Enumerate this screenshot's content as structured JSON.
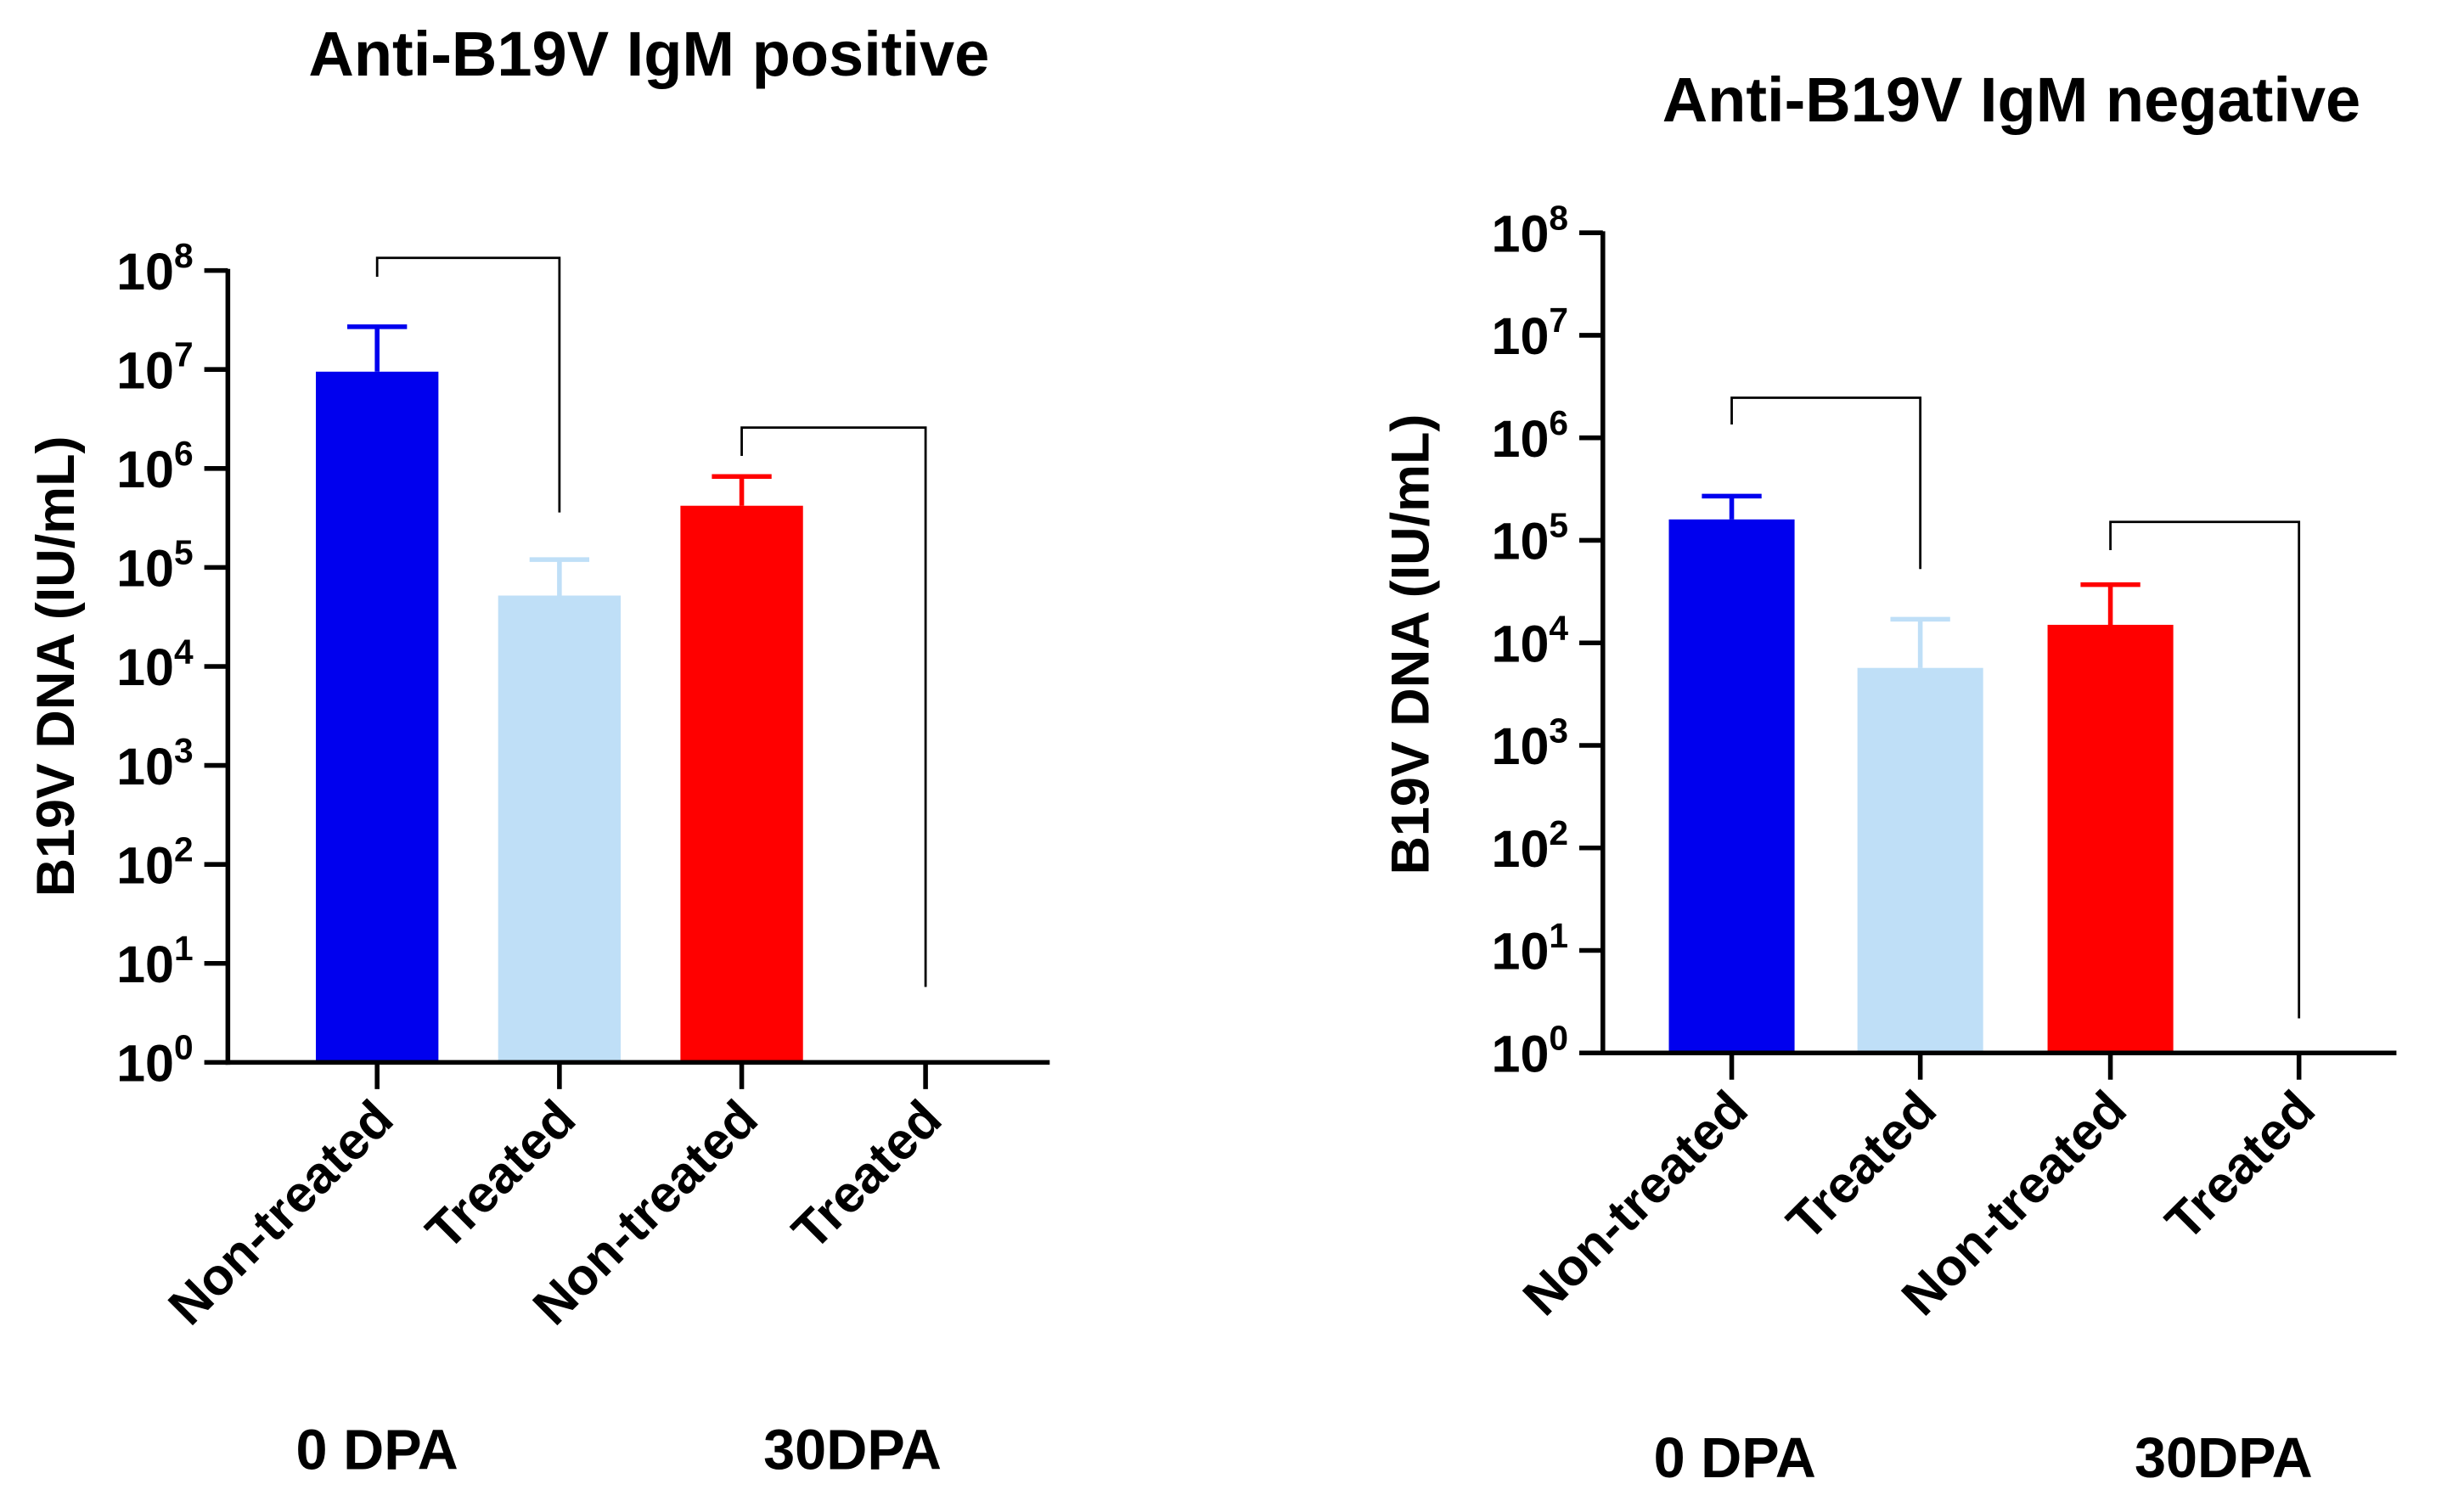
{
  "chart_data": [
    {
      "type": "bar",
      "title": "Anti-B19V IgM positive",
      "ylabel": "B19V DNA (IU/mL)",
      "yscale": "log",
      "ylim": [
        1,
        100000000
      ],
      "ytick_exponents": [
        0,
        1,
        2,
        3,
        4,
        5,
        6,
        7,
        8
      ],
      "categories": [
        "Non-treated",
        "Treated",
        "Non-treated",
        "Treated"
      ],
      "groups": [
        {
          "label": "0 DPA",
          "categories": [
            0,
            1
          ]
        },
        {
          "label": "30DPA",
          "categories": [
            2,
            3
          ]
        }
      ],
      "values": [
        9500000,
        52000,
        420000,
        0
      ],
      "error_upper": [
        27000000,
        120000,
        830000,
        0
      ],
      "colors": [
        "#0000EE",
        "#BFDFF7",
        "#FF0000",
        "#FF0000"
      ],
      "comparisons": [
        {
          "from": 0,
          "to": 1,
          "label": "**"
        },
        {
          "from": 2,
          "to": 3,
          "label": "**"
        }
      ]
    },
    {
      "type": "bar",
      "title": "Anti-B19V IgM negative",
      "ylabel": "B19V DNA (IU/mL)",
      "yscale": "log",
      "ylim": [
        1,
        100000000
      ],
      "ytick_exponents": [
        0,
        1,
        2,
        3,
        4,
        5,
        6,
        7,
        8
      ],
      "categories": [
        "Non-treated",
        "Treated",
        "Non-treated",
        "Treated"
      ],
      "groups": [
        {
          "label": "0 DPA",
          "categories": [
            0,
            1
          ]
        },
        {
          "label": "30DPA",
          "categories": [
            2,
            3
          ]
        }
      ],
      "values": [
        160000,
        5700,
        15000,
        0
      ],
      "error_upper": [
        270000,
        17000,
        37000,
        0
      ],
      "colors": [
        "#0000EE",
        "#BFDFF7",
        "#FF0000",
        "#FF0000"
      ],
      "comparisons": [
        {
          "from": 0,
          "to": 1,
          "label": "**"
        },
        {
          "from": 2,
          "to": 3,
          "label": "**"
        }
      ]
    }
  ]
}
